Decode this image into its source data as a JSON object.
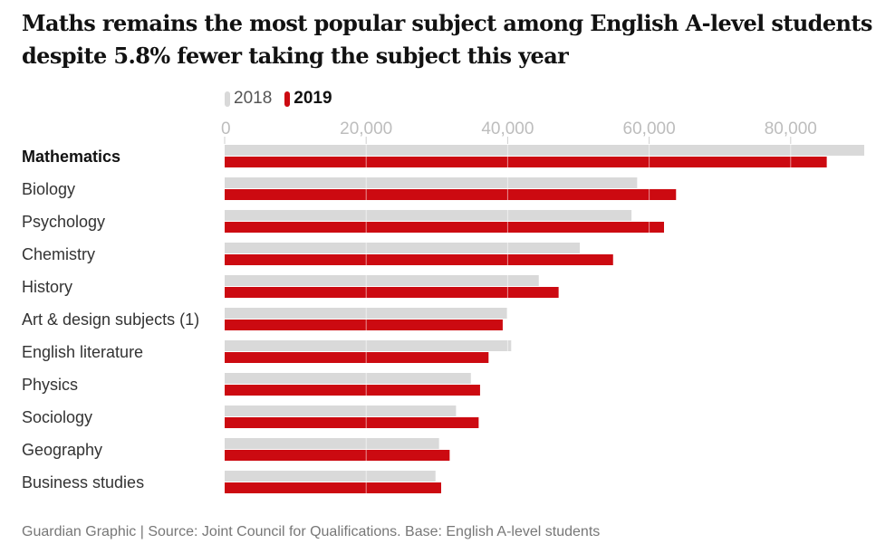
{
  "title": "Maths remains the most popular subject among English A-level students despite 5.8% fewer taking the subject this year",
  "footer": "Guardian Graphic | Source: Joint Council for Qualifications. Base: English A-level students",
  "colors": {
    "y2018": "#d9d9d9",
    "y2019": "#cc0a11",
    "grid": "#ffffff"
  },
  "chart_data": {
    "type": "bar",
    "orientation": "horizontal",
    "title": "Maths remains the most popular subject among English A-level students despite 5.8% fewer taking the subject this year",
    "xlabel": "",
    "ylabel": "",
    "xlim": [
      0,
      90500
    ],
    "xticks": [
      0,
      20000,
      40000,
      60000,
      80000
    ],
    "xtick_labels": [
      "0",
      "20,000",
      "40,000",
      "60,000",
      "80,000"
    ],
    "legend_position": "top-left",
    "grid": true,
    "categories": [
      "Mathematics",
      "Biology",
      "Psychology",
      "Chemistry",
      "History",
      "Art & design subjects (1)",
      "English literature",
      "Physics",
      "Sociology",
      "Geography",
      "Business studies"
    ],
    "highlight_category": "Mathematics",
    "series": [
      {
        "name": "2018",
        "values": [
          90400,
          58300,
          57500,
          50200,
          44400,
          39900,
          40500,
          34800,
          32700,
          30300,
          29800
        ]
      },
      {
        "name": "2019",
        "values": [
          85100,
          63800,
          62100,
          54900,
          47200,
          39300,
          37300,
          36100,
          35900,
          31800,
          30600
        ]
      }
    ]
  }
}
